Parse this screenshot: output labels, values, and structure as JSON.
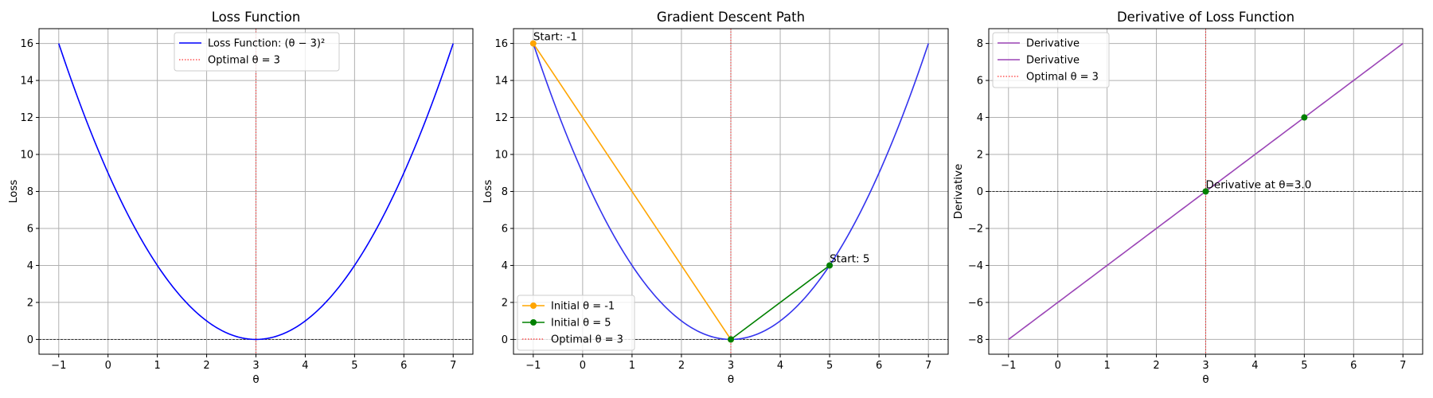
{
  "chart_data": [
    {
      "type": "line",
      "title": "Loss Function",
      "xlabel": "θ",
      "ylabel": "Loss",
      "xlim": [
        -1.4,
        7.4
      ],
      "ylim": [
        -0.8,
        16.8
      ],
      "xticks": [
        -1,
        0,
        1,
        2,
        3,
        4,
        5,
        6,
        7
      ],
      "yticks": [
        0,
        2,
        4,
        6,
        8,
        10,
        12,
        14,
        16
      ],
      "grid": true,
      "legend_position": "top-center",
      "curve": {
        "name": "Loss Function: (θ − 3)²",
        "function": "(x-3)^2",
        "x_range": [
          -1,
          7
        ],
        "color": "#0000ff"
      },
      "hlines": [
        {
          "y": 0,
          "color": "#000000",
          "style": "dashed"
        }
      ],
      "vlines": [
        {
          "x": 3,
          "name": "Optimal θ = 3",
          "color": "#ff0000",
          "style": "dotted"
        }
      ],
      "series": [],
      "annotations": [],
      "legend": [
        {
          "label": "Loss Function: (θ − 3)²",
          "color": "#0000ff",
          "style": "solid",
          "marker": false
        },
        {
          "label": "Optimal θ = 3",
          "color": "#ff0000",
          "style": "dotted",
          "marker": false
        }
      ]
    },
    {
      "type": "line",
      "title": "Gradient Descent Path",
      "xlabel": "θ",
      "ylabel": "Loss",
      "xlim": [
        -1.4,
        7.4
      ],
      "ylim": [
        -0.8,
        16.8
      ],
      "xticks": [
        -1,
        0,
        1,
        2,
        3,
        4,
        5,
        6,
        7
      ],
      "yticks": [
        0,
        2,
        4,
        6,
        8,
        10,
        12,
        14,
        16
      ],
      "grid": true,
      "legend_position": "bottom-left",
      "curve": {
        "name": "",
        "function": "(x-3)^2",
        "x_range": [
          -1,
          7
        ],
        "color": "#3333ee"
      },
      "hlines": [
        {
          "y": 0,
          "color": "#000000",
          "style": "dashed"
        }
      ],
      "vlines": [
        {
          "x": 3,
          "name": "Optimal θ = 3",
          "color": "#ff0000",
          "style": "dotted"
        }
      ],
      "series": [
        {
          "name": "Initial θ = -1",
          "color": "#ffa500",
          "x": [
            -1,
            3
          ],
          "y": [
            16,
            0
          ],
          "marker": true
        },
        {
          "name": "Initial θ = 5",
          "color": "#008000",
          "x": [
            5,
            3
          ],
          "y": [
            4,
            0
          ],
          "marker": true
        }
      ],
      "annotations": [
        {
          "text": "Start: -1",
          "x": -1,
          "y": 16
        },
        {
          "text": "Start: 5",
          "x": 5,
          "y": 4
        }
      ],
      "legend": [
        {
          "label": "Initial θ = -1",
          "color": "#ffa500",
          "style": "solid",
          "marker": true
        },
        {
          "label": "Initial θ = 5",
          "color": "#008000",
          "style": "solid",
          "marker": true
        },
        {
          "label": "Optimal θ = 3",
          "color": "#ff0000",
          "style": "dotted",
          "marker": false
        }
      ]
    },
    {
      "type": "line",
      "title": "Derivative of Loss Function",
      "xlabel": "θ",
      "ylabel": "Derivative",
      "xlim": [
        -1.4,
        7.4
      ],
      "ylim": [
        -8.8,
        8.8
      ],
      "xticks": [
        -1,
        0,
        1,
        2,
        3,
        4,
        5,
        6,
        7
      ],
      "yticks": [
        -8,
        -6,
        -4,
        -2,
        0,
        2,
        4,
        6,
        8
      ],
      "ytick_labels": [
        "−8",
        "−6",
        "−4",
        "−2",
        "0",
        "2",
        "4",
        "6",
        "8"
      ],
      "grid": true,
      "legend_position": "top-left",
      "curve": {
        "name": "Derivative",
        "function": "2*(x-3)",
        "x_range": [
          -1,
          7
        ],
        "color": "#9b45b6"
      },
      "hlines": [
        {
          "y": 0,
          "color": "#000000",
          "style": "dashed"
        }
      ],
      "vlines": [
        {
          "x": 3,
          "name": "Optimal θ = 3",
          "color": "#ff0000",
          "style": "dotted"
        }
      ],
      "series": [],
      "points": [
        {
          "x": 3,
          "y": 0,
          "color": "#008000"
        },
        {
          "x": 5,
          "y": 4,
          "color": "#008000"
        }
      ],
      "annotations": [
        {
          "text": "Derivative at θ=3.0",
          "x": 3,
          "y": 0
        }
      ],
      "legend": [
        {
          "label": "Derivative",
          "color": "#9b45b6",
          "style": "solid",
          "marker": false
        },
        {
          "label": "Derivative",
          "color": "#9b45b6",
          "style": "solid",
          "marker": false
        },
        {
          "label": "Optimal θ = 3",
          "color": "#ff0000",
          "style": "dotted",
          "marker": false
        }
      ]
    }
  ]
}
